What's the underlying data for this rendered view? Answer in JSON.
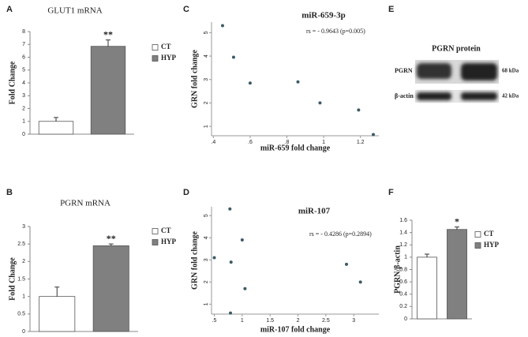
{
  "chart_data": [
    {
      "type": "bar",
      "label": "A",
      "title": "GLUT1 mRNA",
      "y_label": "Fold Change",
      "categories": [
        "CT",
        "HYP"
      ],
      "values": [
        1.0,
        6.85
      ],
      "errors": [
        0.3,
        0.5
      ],
      "colors": [
        "#ffffff",
        "#808080"
      ],
      "annotation": "**",
      "ylim": [
        0,
        8
      ],
      "yticks": [
        0,
        1,
        2,
        3,
        4,
        5,
        6,
        7,
        8
      ]
    },
    {
      "type": "bar",
      "label": "B",
      "title": "PGRN mRNA",
      "y_label": "Fold Change",
      "categories": [
        "CT",
        "HYP"
      ],
      "values": [
        1.0,
        2.45
      ],
      "errors": [
        0.27,
        0.05
      ],
      "colors": [
        "#ffffff",
        "#808080"
      ],
      "annotation": "**",
      "ylim": [
        0,
        3
      ],
      "yticks": [
        0,
        0.5,
        1,
        1.5,
        2,
        2.5,
        3
      ]
    },
    {
      "type": "scatter",
      "label": "C",
      "title": "miR-659-3p",
      "x_label": "miR-659 fold change",
      "y_label": "GRN fold change",
      "annotation": "rs = - 0.9643 (p=0.005)",
      "color": "#3d5a66",
      "x": [
        0.45,
        0.51,
        0.6,
        0.86,
        0.98,
        1.19,
        1.27
      ],
      "y": [
        5.3,
        3.95,
        2.85,
        2.9,
        2.0,
        1.7,
        0.65
      ],
      "xlim": [
        0.39,
        1.3
      ],
      "ylim": [
        0.6,
        5.45
      ],
      "xticks": [
        {
          "value": 0.4,
          "label": ".4"
        },
        {
          "value": 0.6,
          "label": ".6"
        },
        {
          "value": 0.8,
          "label": ".8"
        },
        1,
        1.2
      ],
      "yticks": [
        1,
        2,
        3,
        4,
        5
      ]
    },
    {
      "type": "scatter",
      "label": "D",
      "title": "miR-107",
      "x_label": "miR-107 fold change",
      "y_label": "GRN fold change",
      "annotation": "rs = - 0.4286 (p=0.2894)",
      "color": "#3d5a66",
      "x": [
        0.5,
        0.78,
        0.8,
        0.79,
        1.0,
        1.05,
        2.87,
        3.12
      ],
      "y": [
        3.1,
        5.3,
        2.9,
        0.6,
        3.9,
        1.7,
        2.8,
        2.0
      ],
      "xlim": [
        0.45,
        3.45
      ],
      "ylim": [
        0.55,
        5.4
      ],
      "xticks": [
        {
          "value": 0.5,
          "label": ".5"
        },
        1,
        1.5,
        2,
        2.5,
        3
      ],
      "yticks": [
        1,
        2,
        3,
        4,
        5
      ]
    },
    {
      "type": "bar",
      "label": "F",
      "title": null,
      "y_label": "PGRN/β-actin",
      "categories": [
        "CT",
        "HYP"
      ],
      "values": [
        1.0,
        1.45
      ],
      "errors": [
        0.05,
        0.04
      ],
      "colors": [
        "#ffffff",
        "#808080"
      ],
      "annotation": "*",
      "ylim": [
        0,
        1.6
      ],
      "yticks": [
        0,
        0.2,
        0.4,
        0.6,
        0.8,
        1,
        1.2,
        1.4,
        1.6
      ]
    }
  ],
  "blot": {
    "label": "E",
    "title": "PGRN protein",
    "rows": [
      {
        "name": "PGRN",
        "size": "68 kDa"
      },
      {
        "name": "β-actin",
        "size": "42 kDa"
      }
    ]
  }
}
